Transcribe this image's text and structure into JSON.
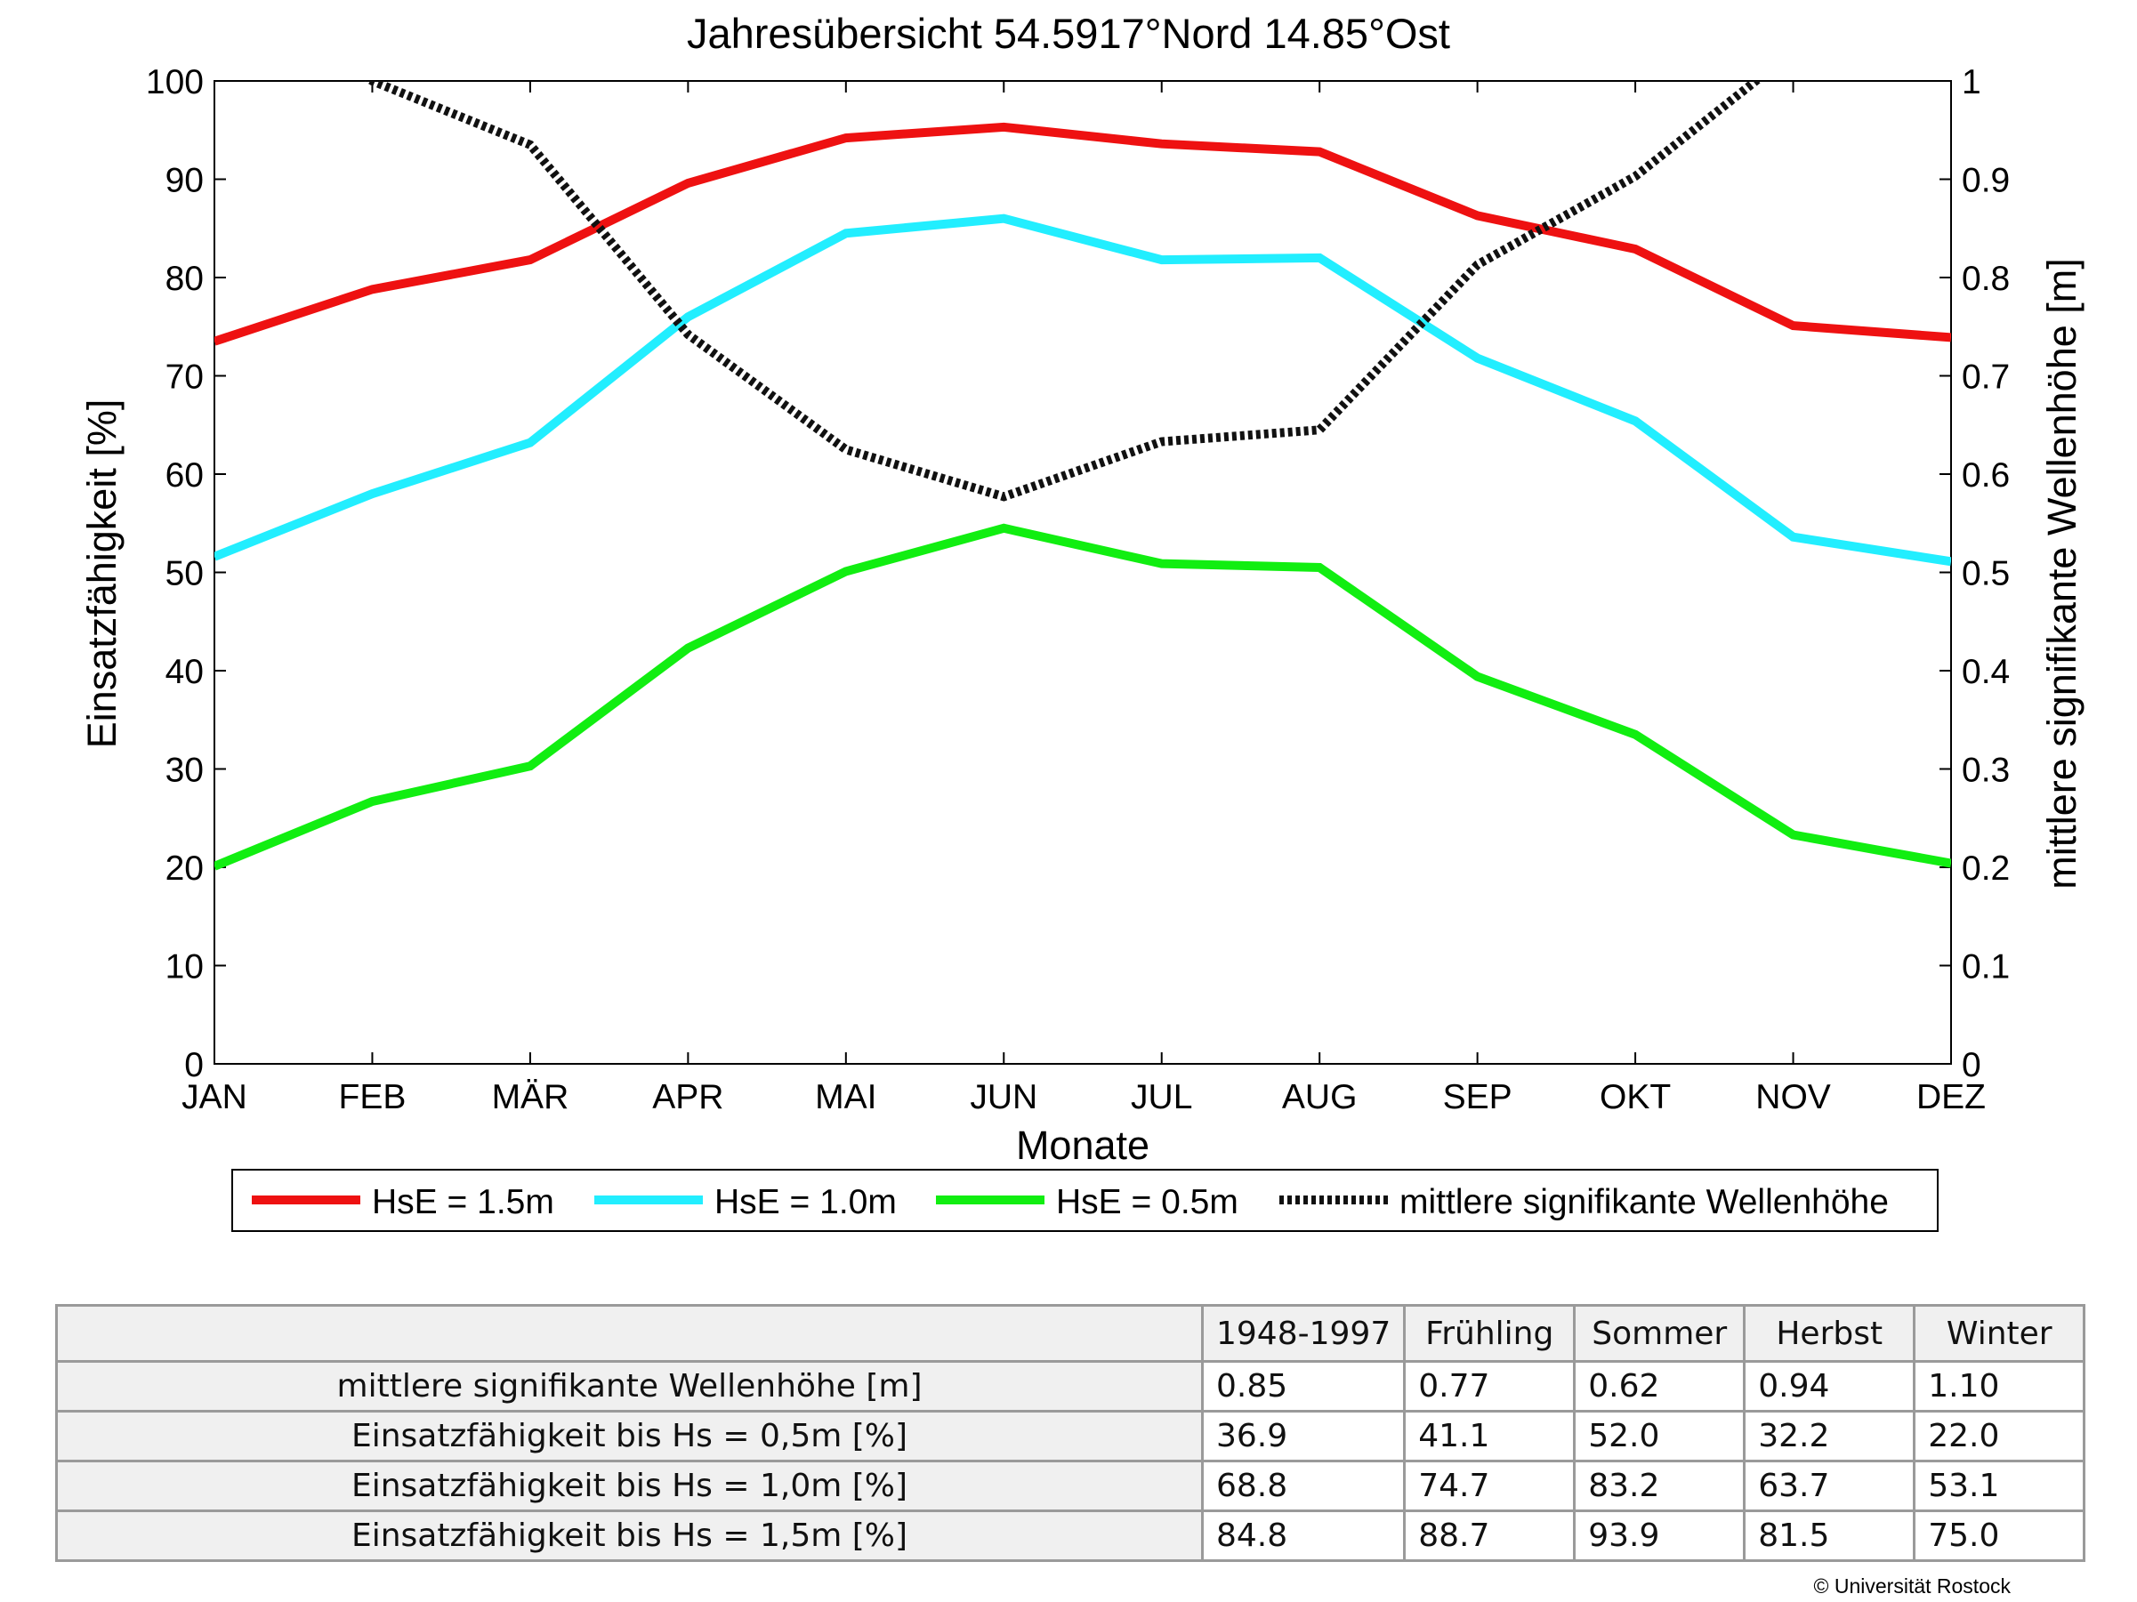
{
  "chart_data": {
    "type": "line",
    "title": "Jahresübersicht  54.5917°Nord  14.85°Ost",
    "xlabel": "Monate",
    "ylabel": "Einsatzfähigkeit [%]",
    "y2label": "mittlere signifikante Wellenhöhe [m]",
    "categories": [
      "JAN",
      "FEB",
      "MÄR",
      "APR",
      "MAI",
      "JUN",
      "JUL",
      "AUG",
      "SEP",
      "OKT",
      "NOV",
      "DEZ"
    ],
    "ylim": [
      0,
      100
    ],
    "y2lim": [
      0,
      1
    ],
    "yticks": [
      "0",
      "10",
      "20",
      "30",
      "40",
      "50",
      "60",
      "70",
      "80",
      "90",
      "100"
    ],
    "y2ticks": [
      "0",
      "0.1",
      "0.2",
      "0.3",
      "0.4",
      "0.5",
      "0.6",
      "0.7",
      "0.8",
      "0.9",
      "1"
    ],
    "grid": false,
    "legend": "bottom",
    "series": [
      {
        "name": "HsE = 1.5m",
        "axis": "left",
        "color": "#ee1111",
        "style": "solid",
        "values": [
          73.5,
          78.8,
          81.8,
          89.6,
          94.2,
          95.3,
          93.6,
          92.8,
          86.3,
          82.9,
          75.1,
          73.9
        ]
      },
      {
        "name": "HsE = 1.0m",
        "axis": "left",
        "color": "#22eeff",
        "style": "solid",
        "values": [
          51.6,
          58.0,
          63.2,
          76.0,
          84.5,
          86.0,
          81.8,
          82.0,
          71.8,
          65.4,
          53.6,
          51.1
        ]
      },
      {
        "name": "HsE = 0.5m",
        "axis": "left",
        "color": "#11ee11",
        "style": "solid",
        "values": [
          20.1,
          26.7,
          30.3,
          42.3,
          50.1,
          54.5,
          50.9,
          50.5,
          39.4,
          33.5,
          23.3,
          20.4
        ]
      },
      {
        "name": "mittlere signifikante Wellenhöhe",
        "axis": "right",
        "color": "#111111",
        "style": "dotted",
        "values": [
          1.1,
          1.0,
          0.935,
          0.742,
          0.625,
          0.577,
          0.633,
          0.645,
          0.813,
          0.903,
          1.03,
          1.1
        ]
      }
    ]
  },
  "table": {
    "headers": [
      "1948-1997",
      "Frühling",
      "Sommer",
      "Herbst",
      "Winter"
    ],
    "rows": [
      {
        "label": "mittlere signifikante Wellenhöhe [m]",
        "values": [
          "0.85",
          "0.77",
          "0.62",
          "0.94",
          "1.10"
        ]
      },
      {
        "label": "Einsatzfähigkeit bis Hs = 0,5m [%]",
        "values": [
          "36.9",
          "41.1",
          "52.0",
          "32.2",
          "22.0"
        ]
      },
      {
        "label": "Einsatzfähigkeit bis Hs = 1,0m [%]",
        "values": [
          "68.8",
          "74.7",
          "83.2",
          "63.7",
          "53.1"
        ]
      },
      {
        "label": "Einsatzfähigkeit bis Hs = 1,5m [%]",
        "values": [
          "84.8",
          "88.7",
          "93.9",
          "81.5",
          "75.0"
        ]
      }
    ]
  },
  "copyright": "© Universität Rostock"
}
